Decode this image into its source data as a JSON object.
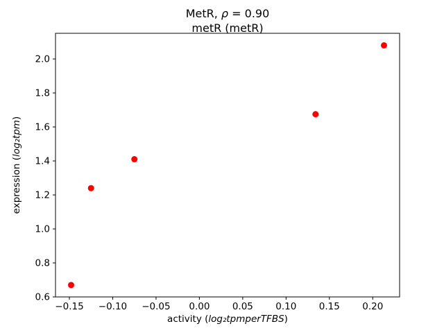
{
  "figure": {
    "title": {
      "prefix": "MetR, ",
      "math": "ρ",
      "suffix": " = 0.90",
      "line2": "metR (metR)"
    },
    "xlabel": {
      "prefix": "activity (",
      "math": "log₂tpmperTFBS",
      "suffix": ")"
    },
    "ylabel": {
      "prefix": "expression (",
      "math": "log₂tpm",
      "suffix": ")"
    }
  },
  "chart_data": {
    "type": "scatter",
    "title": "MetR, ρ = 0.90\nmetR (metR)",
    "xlabel": "activity (log₂ tpm per TFBS)",
    "ylabel": "expression (log₂ tpm)",
    "marker": "o",
    "marker_color": "#ff0000",
    "grid": false,
    "legend": null,
    "xlim": [
      -0.166,
      0.231
    ],
    "ylim": [
      0.6,
      2.151
    ],
    "points": [
      {
        "x": -0.148,
        "y": 0.67
      },
      {
        "x": -0.125,
        "y": 1.24
      },
      {
        "x": -0.075,
        "y": 1.41
      },
      {
        "x": 0.134,
        "y": 1.675
      },
      {
        "x": 0.213,
        "y": 2.08
      }
    ],
    "x_ticks": {
      "values": [
        -0.15,
        -0.1,
        -0.05,
        0.0,
        0.05,
        0.1,
        0.15,
        0.2
      ],
      "labels": [
        "−0.15",
        "−0.10",
        "−0.05",
        "0.00",
        "0.05",
        "0.10",
        "0.15",
        "0.20"
      ]
    },
    "y_ticks": {
      "values": [
        0.6,
        0.8,
        1.0,
        1.2,
        1.4,
        1.6,
        1.8,
        2.0
      ],
      "labels": [
        "0.6",
        "0.8",
        "1.0",
        "1.2",
        "1.4",
        "1.6",
        "1.8",
        "2.0"
      ]
    }
  }
}
